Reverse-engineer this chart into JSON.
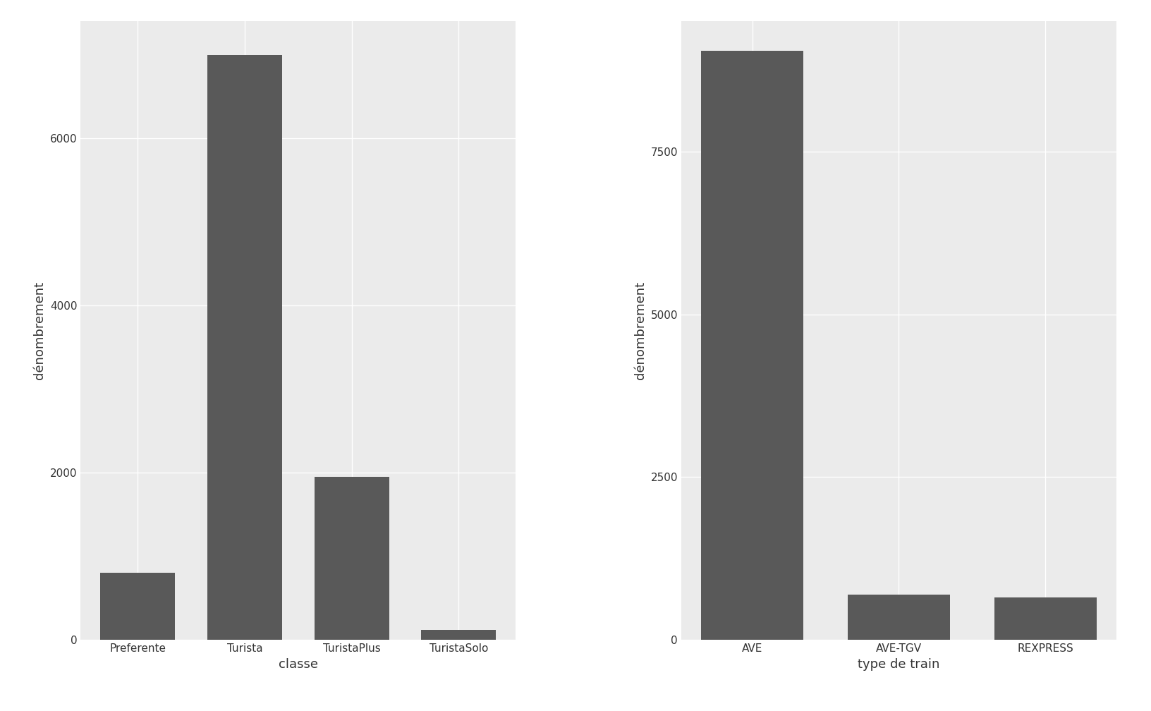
{
  "left": {
    "categories": [
      "Preferente",
      "Turista",
      "TuristaPlus",
      "TuristaSolo"
    ],
    "values": [
      800,
      7000,
      1950,
      120
    ],
    "xlabel": "classe",
    "ylabel": "dénombrement",
    "yticks": [
      0,
      2000,
      4000,
      6000
    ],
    "ylim": [
      0,
      7400
    ]
  },
  "right": {
    "categories": [
      "AVE",
      "AVE-TGV",
      "REXPRESS"
    ],
    "values": [
      9050,
      700,
      650
    ],
    "xlabel": "type de train",
    "ylabel": "dénombrement",
    "yticks": [
      0,
      2500,
      5000,
      7500
    ],
    "ylim": [
      0,
      9500
    ]
  },
  "bar_color": "#595959",
  "background_color": "#ffffff",
  "panel_background": "#ebebeb",
  "grid_color": "#ffffff",
  "grid_linewidth": 1.0,
  "label_fontsize": 13,
  "tick_fontsize": 11,
  "bar_width": 0.7
}
